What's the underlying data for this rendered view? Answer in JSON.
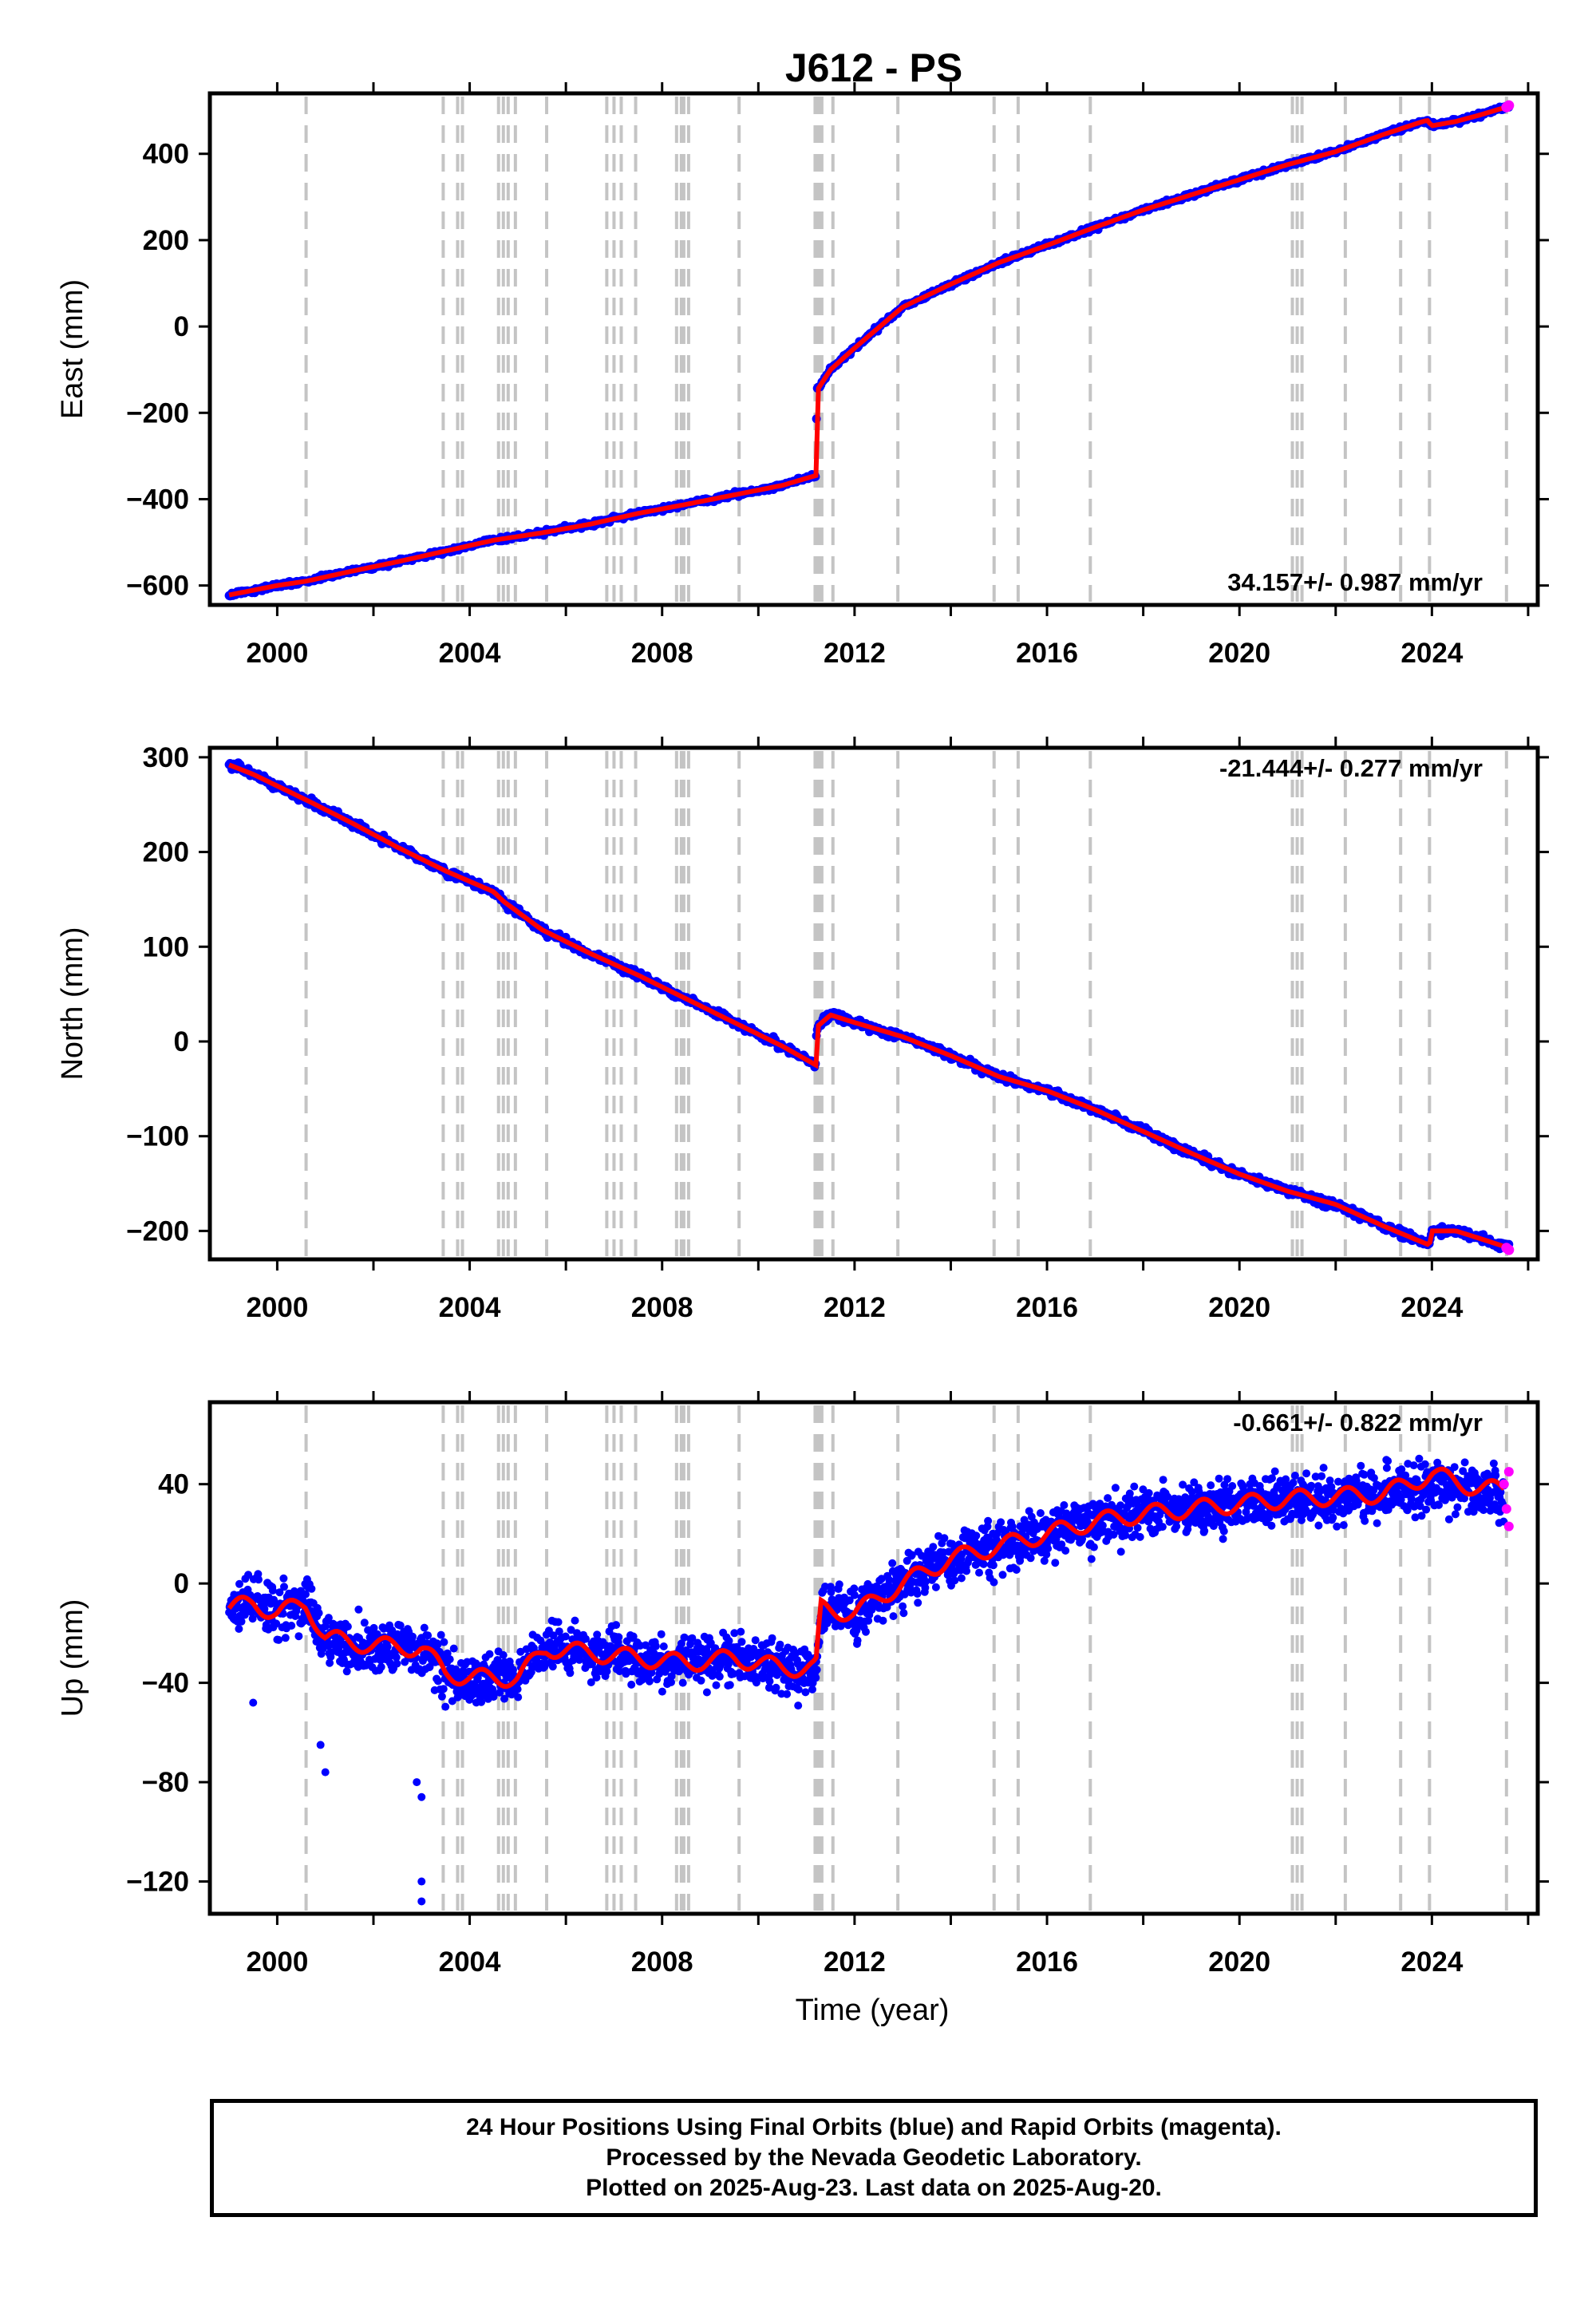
{
  "title": "J612 - PS",
  "footer": {
    "line1": "24 Hour Positions Using Final Orbits (blue) and Rapid Orbits (magenta).",
    "line2": "Processed by the Nevada Geodetic Laboratory.",
    "line3": "Plotted on 2025-Aug-23. Last data on 2025-Aug-20."
  },
  "colors": {
    "final_orbits": "#0000ff",
    "rapid_orbits": "#ff00ff",
    "model": "#ff0000",
    "event_lines": "#c4c4c4"
  },
  "chart_data": [
    {
      "type": "scatter",
      "ylabel": "East (mm)",
      "xlabel": "",
      "xlim": [
        1998.6,
        2026.2
      ],
      "ylim": [
        -645,
        540
      ],
      "xticks": [
        2000,
        2004,
        2008,
        2012,
        2016,
        2020,
        2024
      ],
      "yticks": [
        -600,
        -400,
        -200,
        0,
        200,
        400
      ],
      "rate_label": "34.157+/- 0.987 mm/yr",
      "rate_position": "bottom-right",
      "grid": false,
      "series": [
        {
          "role": "final_orbits",
          "color": "#0000ff",
          "x": [
            1999.0,
            2000.0,
            2000.6,
            2001.5,
            2002.5,
            2003.5,
            2004.5,
            2005.5,
            2006.5,
            2007.5,
            2008.5,
            2009.5,
            2010.5,
            2011.2,
            2011.21,
            2011.5,
            2012.0,
            2013.0,
            2014.0,
            2015.0,
            2016.0,
            2017.0,
            2018.0,
            2019.0,
            2020.0,
            2021.0,
            2022.0,
            2023.0,
            2023.9,
            2024.0,
            2024.5,
            2025.0,
            2025.6
          ],
          "y": [
            -622,
            -600,
            -590,
            -568,
            -545,
            -520,
            -495,
            -478,
            -458,
            -433,
            -412,
            -390,
            -368,
            -345,
            -150,
            -100,
            -50,
            45,
            98,
            148,
            188,
            230,
            270,
            305,
            340,
            375,
            405,
            445,
            478,
            465,
            475,
            490,
            510
          ]
        },
        {
          "role": "rapid_orbits",
          "color": "#ff00ff",
          "x": [
            2025.55,
            2025.6
          ],
          "y": [
            508,
            512
          ]
        },
        {
          "role": "model",
          "color": "#ff0000",
          "x": [
            1999.0,
            2000.0,
            2000.6,
            2001.5,
            2002.5,
            2003.5,
            2004.5,
            2005.5,
            2006.5,
            2007.5,
            2008.5,
            2009.5,
            2010.5,
            2011.2,
            2011.21,
            2011.5,
            2012.0,
            2013.0,
            2014.0,
            2015.0,
            2016.0,
            2017.0,
            2018.0,
            2019.0,
            2020.0,
            2021.0,
            2022.0,
            2023.0,
            2023.9,
            2024.0,
            2024.5,
            2025.0,
            2025.6
          ],
          "y": [
            -622,
            -600,
            -590,
            -568,
            -545,
            -520,
            -495,
            -478,
            -458,
            -433,
            -412,
            -390,
            -368,
            -345,
            -150,
            -100,
            -50,
            45,
            98,
            148,
            188,
            230,
            270,
            305,
            340,
            375,
            405,
            445,
            478,
            465,
            475,
            490,
            510
          ]
        }
      ]
    },
    {
      "type": "scatter",
      "ylabel": "North (mm)",
      "xlabel": "",
      "xlim": [
        1998.6,
        2026.2
      ],
      "ylim": [
        -230,
        310
      ],
      "xticks": [
        2000,
        2004,
        2008,
        2012,
        2016,
        2020,
        2024
      ],
      "yticks": [
        -200,
        -100,
        0,
        100,
        200,
        300
      ],
      "rate_label": "-21.444+/- 0.277 mm/yr",
      "rate_position": "top-right",
      "grid": false,
      "series": [
        {
          "role": "final_orbits",
          "color": "#0000ff",
          "x": [
            1999.0,
            1999.5,
            2000.6,
            2001.5,
            2002.5,
            2003.5,
            2004.5,
            2004.7,
            2005.5,
            2006.5,
            2007.5,
            2008.5,
            2009.5,
            2010.5,
            2011.2,
            2011.21,
            2011.5,
            2012.0,
            2013.0,
            2014.0,
            2015.0,
            2016.0,
            2017.0,
            2018.0,
            2019.0,
            2020.0,
            2021.0,
            2022.0,
            2023.0,
            2023.95,
            2024.0,
            2024.5,
            2025.0,
            2025.6
          ],
          "y": [
            295,
            282,
            255,
            232,
            205,
            180,
            158,
            148,
            118,
            93,
            70,
            45,
            20,
            -5,
            -25,
            15,
            30,
            20,
            5,
            -15,
            -37,
            -52,
            -72,
            -95,
            -118,
            -140,
            -158,
            -172,
            -195,
            -215,
            -200,
            -200,
            -208,
            -218
          ]
        },
        {
          "role": "rapid_orbits",
          "color": "#ff00ff",
          "x": [
            2025.55,
            2025.6
          ],
          "y": [
            -218,
            -220
          ]
        },
        {
          "role": "model",
          "color": "#ff0000",
          "x": [
            1999.0,
            1999.5,
            2000.6,
            2001.5,
            2002.5,
            2003.5,
            2004.5,
            2004.7,
            2005.5,
            2006.5,
            2007.5,
            2008.5,
            2009.5,
            2010.5,
            2011.2,
            2011.21,
            2011.5,
            2012.0,
            2013.0,
            2014.0,
            2015.0,
            2016.0,
            2017.0,
            2018.0,
            2019.0,
            2020.0,
            2021.0,
            2022.0,
            2023.0,
            2023.95,
            2024.0,
            2024.5,
            2025.0,
            2025.6
          ],
          "y": [
            292,
            282,
            255,
            232,
            205,
            180,
            158,
            148,
            118,
            93,
            70,
            45,
            20,
            -5,
            -25,
            15,
            28,
            20,
            5,
            -15,
            -37,
            -52,
            -72,
            -95,
            -118,
            -140,
            -158,
            -172,
            -195,
            -215,
            -200,
            -200,
            -208,
            -218
          ]
        }
      ]
    },
    {
      "type": "scatter",
      "ylabel": "Up (mm)",
      "xlabel": "Time (year)",
      "xlim": [
        1998.6,
        2026.2
      ],
      "ylim": [
        -133,
        73
      ],
      "xticks": [
        2000,
        2004,
        2008,
        2012,
        2016,
        2020,
        2024
      ],
      "yticks": [
        -120,
        -80,
        -40,
        0,
        40
      ],
      "rate_label": "-0.661+/- 0.822 mm/yr",
      "rate_position": "top-right",
      "grid": false,
      "series": [
        {
          "role": "final_orbits",
          "color": "#0000ff",
          "x": [
            1999.0,
            1999.5,
            2000.0,
            2000.6,
            2001.0,
            2002.0,
            2003.0,
            2003.5,
            2004.0,
            2005.0,
            2005.6,
            2006.5,
            2007.5,
            2008.5,
            2009.5,
            2010.5,
            2011.2,
            2011.3,
            2012.0,
            2013.0,
            2014.0,
            2015.0,
            2016.0,
            2017.0,
            2018.0,
            2019.0,
            2020.0,
            2021.0,
            2022.0,
            2023.0,
            2024.0,
            2025.0,
            2025.5
          ],
          "y": [
            -10,
            -8,
            -12,
            -8,
            -22,
            -25,
            -26,
            -36,
            -38,
            -38,
            -26,
            -28,
            -30,
            -32,
            -30,
            -34,
            -34,
            -10,
            -12,
            0,
            10,
            15,
            20,
            25,
            28,
            30,
            32,
            34,
            35,
            36,
            40,
            38,
            35
          ],
          "outliers": {
            "x": [
              2000.9,
              2001.0,
              2002.9,
              2003.0,
              2003.0,
              2003.0,
              1999.5
            ],
            "y": [
              -65,
              -76,
              -80,
              -86,
              -128,
              -120,
              -48
            ]
          }
        },
        {
          "role": "rapid_orbits",
          "color": "#ff00ff",
          "x": [
            2025.5,
            2025.55,
            2025.6,
            2025.6
          ],
          "y": [
            40,
            30,
            23,
            45
          ]
        },
        {
          "role": "model",
          "color": "#ff0000",
          "x": [
            1999.0,
            1999.5,
            2000.0,
            2000.6,
            2001.0,
            2002.0,
            2003.0,
            2003.5,
            2004.0,
            2005.0,
            2005.6,
            2006.5,
            2007.5,
            2008.5,
            2009.5,
            2010.5,
            2011.2,
            2011.3,
            2012.0,
            2013.0,
            2014.0,
            2015.0,
            2016.0,
            2017.0,
            2018.0,
            2019.0,
            2020.0,
            2021.0,
            2022.0,
            2023.0,
            2024.0,
            2025.0,
            2025.5
          ],
          "y": [
            -10,
            -8,
            -12,
            -8,
            -22,
            -25,
            -26,
            -36,
            -38,
            -38,
            -26,
            -28,
            -30,
            -32,
            -30,
            -34,
            -34,
            -10,
            -12,
            0,
            10,
            15,
            20,
            25,
            28,
            30,
            32,
            34,
            35,
            36,
            44,
            38,
            38
          ]
        }
      ]
    }
  ],
  "event_lines": [
    2000.6,
    2003.45,
    2003.75,
    2003.85,
    2004.6,
    2004.7,
    2004.8,
    2004.95,
    2005.6,
    2006.85,
    2007.0,
    2007.15,
    2007.45,
    2008.3,
    2008.4,
    2008.45,
    2008.55,
    2009.6,
    2011.18,
    2011.22,
    2011.28,
    2011.32,
    2011.55,
    2012.9,
    2014.9,
    2015.4,
    2016.9,
    2021.1,
    2021.2,
    2021.3,
    2022.2,
    2023.35,
    2023.95,
    2025.55
  ]
}
